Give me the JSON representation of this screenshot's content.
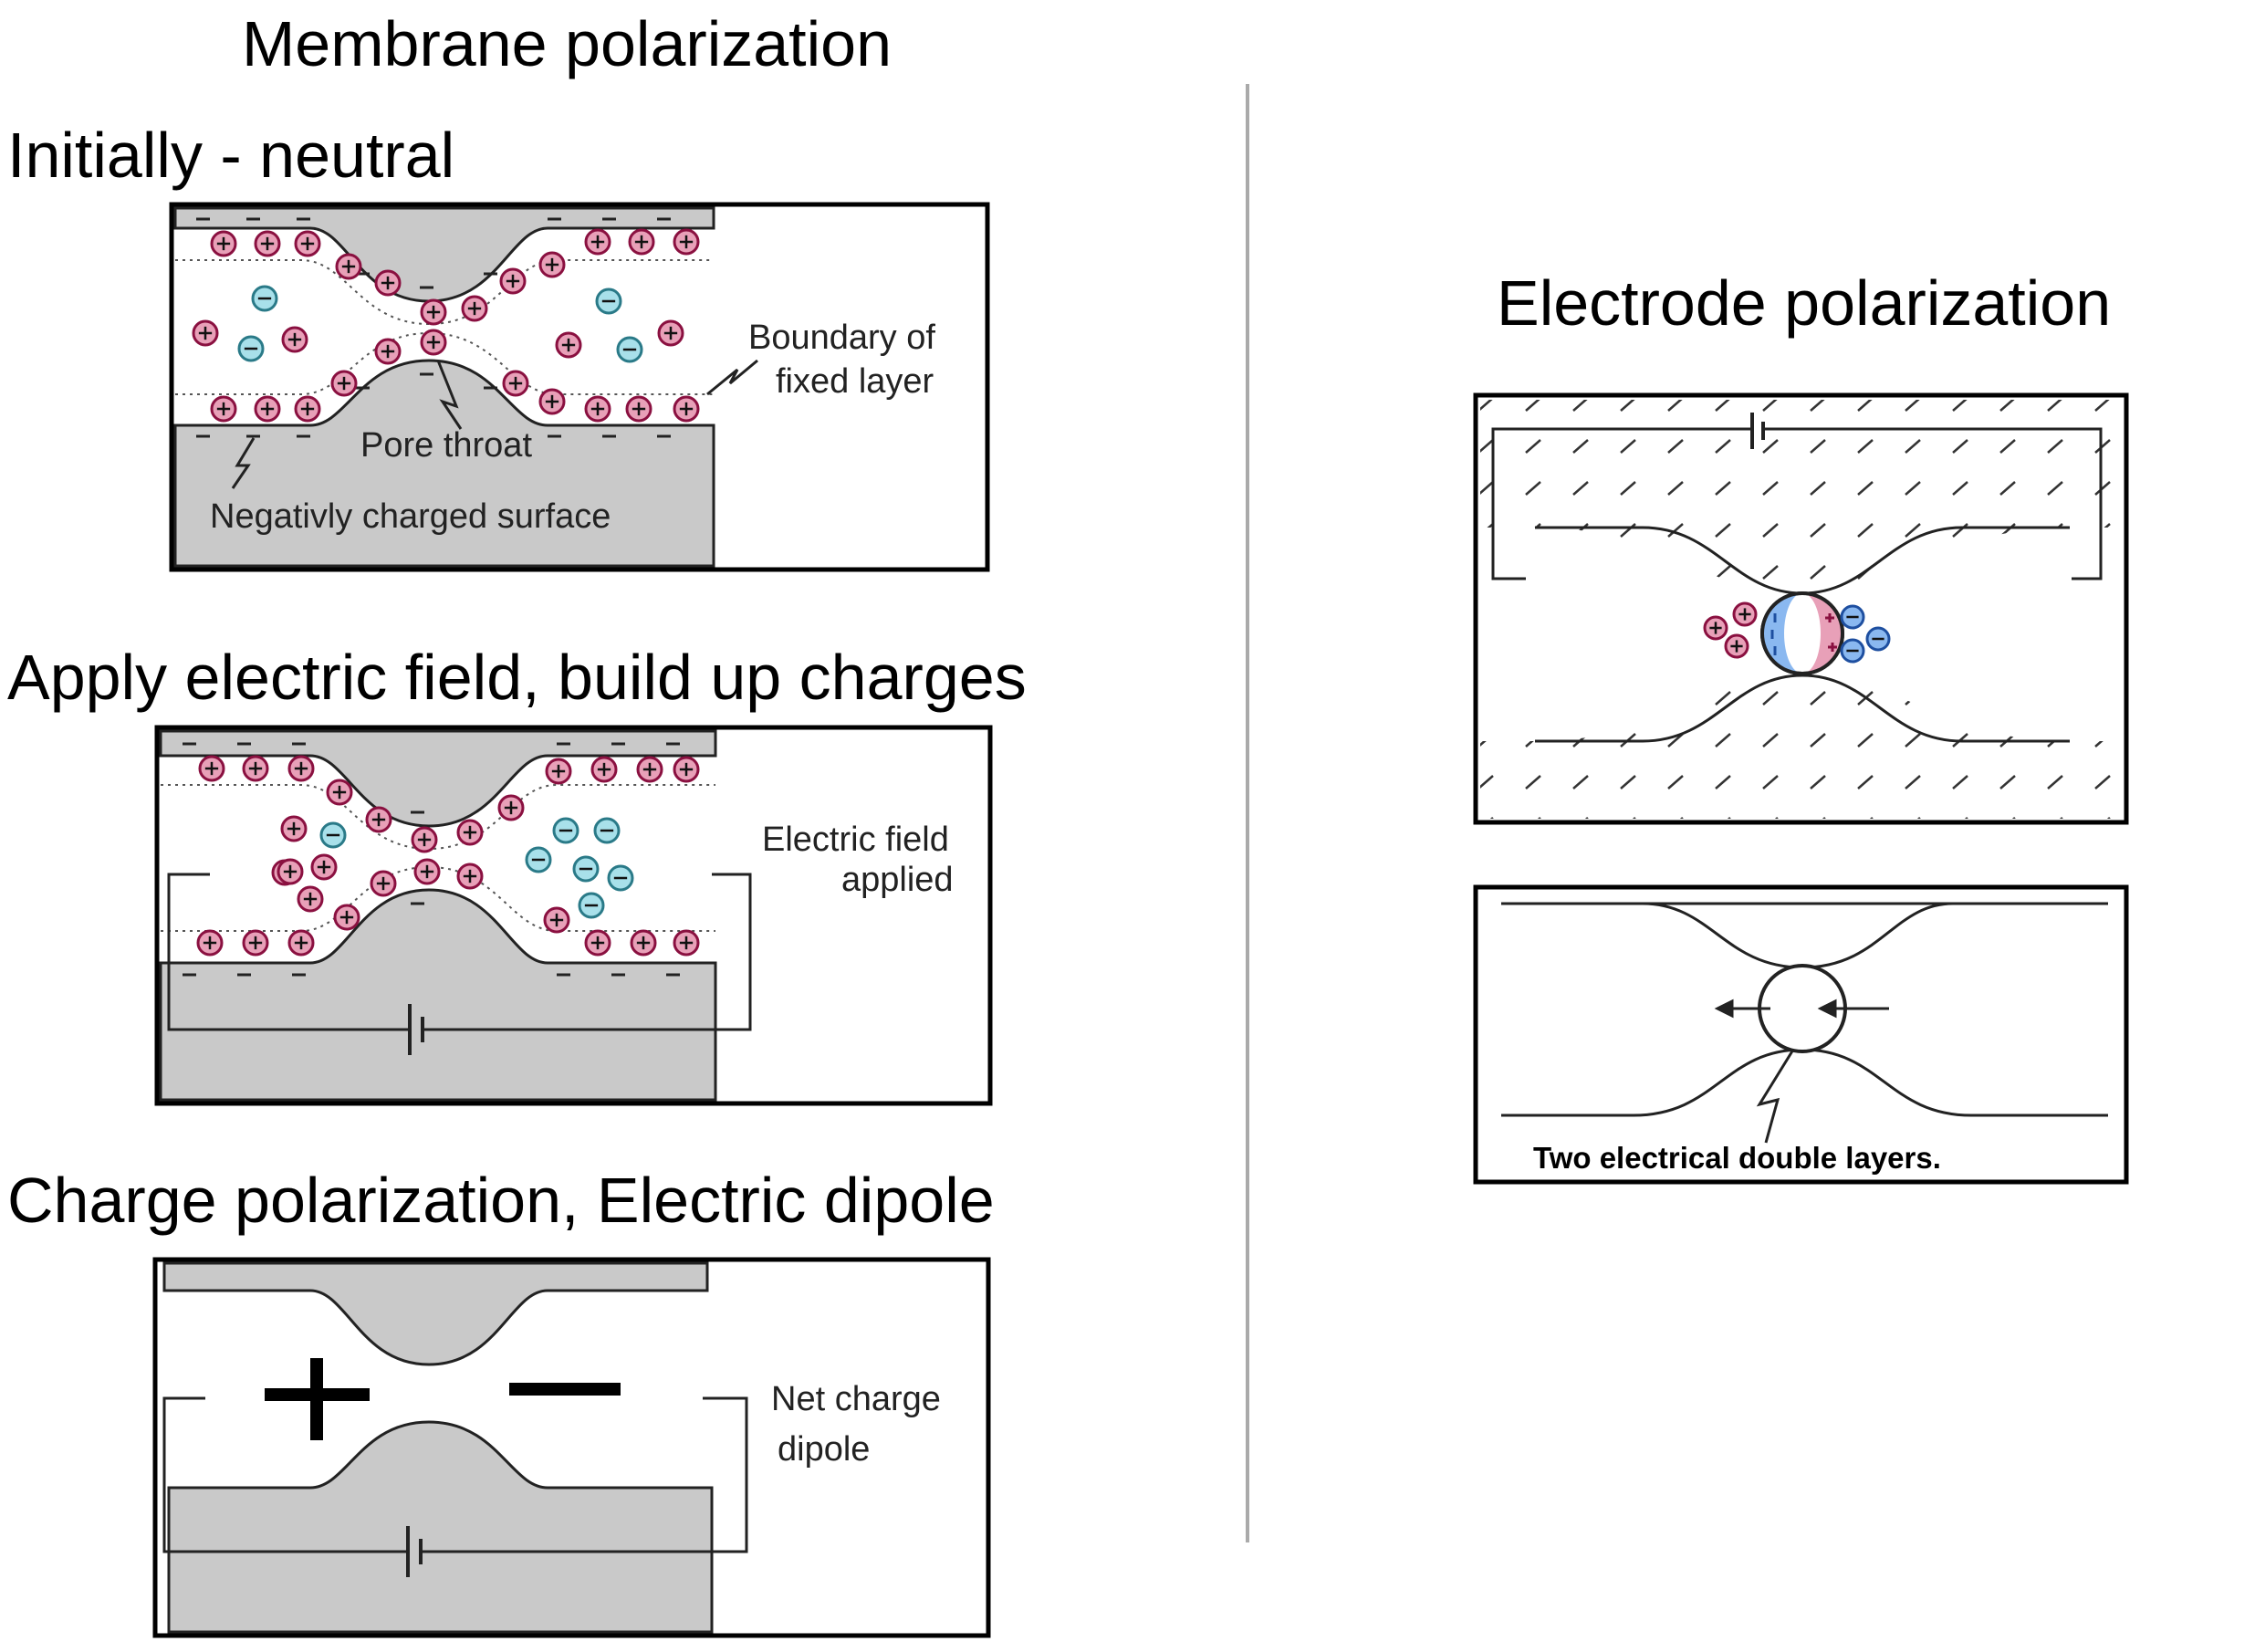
{
  "membrane": {
    "title": "Membrane polarization",
    "panel1": {
      "caption": "Initially - neutral",
      "boundary_label_line1": "Boundary of",
      "boundary_label_line2": "fixed layer",
      "pore_throat_label": "Pore throat",
      "surface_label": "Negativly charged surface"
    },
    "panel2": {
      "caption": "Apply electric field, build up charges",
      "field_label_line1": "Electric field",
      "field_label_line2": "applied"
    },
    "panel3": {
      "caption": "Charge polarization, Electric dipole",
      "net_label_line1": "Net charge",
      "net_label_line2": "dipole"
    }
  },
  "electrode": {
    "title": "Electrode polarization",
    "panel5_label": "Two electrical double layers."
  },
  "colors": {
    "cation_fill": "#e8a0b8",
    "cation_stroke": "#8a1040",
    "anion_fill": "#a8e0ea",
    "anion_stroke": "#2a7a88",
    "electrode_anion_fill": "#8ab8f0",
    "electrode_anion_stroke": "#1e4fa0",
    "grain_gray": "#c9c9c9",
    "divider": "#aaaaaa"
  }
}
